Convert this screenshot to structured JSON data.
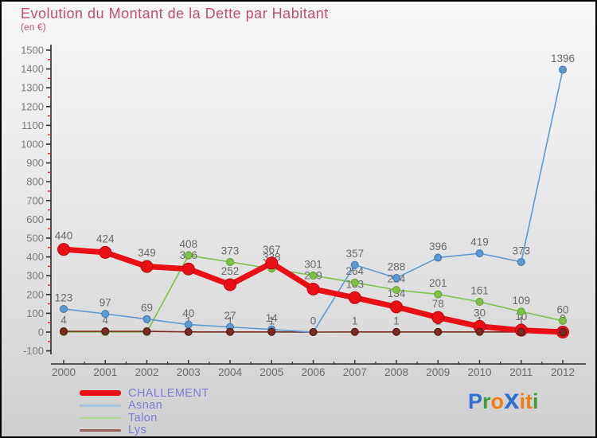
{
  "title": "Evolution du Montant de la Dette par Habitant",
  "subtitle": "(en €)",
  "chart_data": {
    "type": "line",
    "title": "Evolution du Montant de la Dette par Habitant",
    "unit_label": "(en €)",
    "x": [
      2000,
      2001,
      2002,
      2003,
      2004,
      2005,
      2006,
      2007,
      2008,
      2009,
      2010,
      2011,
      2012
    ],
    "ylim": [
      -100,
      1500
    ],
    "y_ticks": [
      -100,
      0,
      100,
      200,
      300,
      400,
      500,
      600,
      700,
      800,
      900,
      1000,
      1100,
      1200,
      1300,
      1400,
      1500
    ],
    "grid": false,
    "legend_position": "bottom-left",
    "series": [
      {
        "name": "CHALLEMENT",
        "color": "#e90f15",
        "marker_stroke": "#b30a10",
        "line_width": 7,
        "marker_radius": 7.5,
        "values": [
          440,
          424,
          349,
          336,
          252,
          367,
          229,
          183,
          134,
          78,
          30,
          10,
          0
        ],
        "hide_labels": []
      },
      {
        "name": "Asnan",
        "color": "#5e9ad2",
        "marker_stroke": "#3f76ab",
        "line_width": 1.6,
        "marker_radius": 4.5,
        "values": [
          123,
          97,
          69,
          40,
          27,
          14,
          0,
          357,
          288,
          396,
          419,
          373,
          1396
        ],
        "hide_labels": []
      },
      {
        "name": "Talon",
        "color": "#7fc24a",
        "marker_stroke": "#5d9c2f",
        "line_width": 1.6,
        "marker_radius": 4.5,
        "values": [
          0,
          0,
          0,
          408,
          373,
          338,
          301,
          264,
          224,
          201,
          161,
          109,
          60
        ],
        "hide_labels": [
          2000,
          2001,
          2002
        ]
      },
      {
        "name": "Lys",
        "color": "#7c2b21",
        "marker_stroke": "#4a140e",
        "line_width": 1.6,
        "marker_radius": 4.5,
        "values": [
          4,
          4,
          4,
          1,
          1,
          1,
          0,
          1,
          1,
          1,
          1,
          1,
          0
        ],
        "hide_labels": [
          2006,
          2012
        ]
      }
    ],
    "draw_line_order": [
      "Talon",
      "Lys",
      "Asnan",
      "CHALLEMENT"
    ],
    "draw_marker_order": [
      "Talon",
      "Asnan",
      "CHALLEMENT",
      "Lys"
    ]
  },
  "legend": {
    "text_color": "#7e7ad8",
    "items": [
      {
        "label": "CHALLEMENT",
        "swatch_color": "#e90f15",
        "swatch_height": 7
      },
      {
        "label": "Asnan",
        "swatch_color": "#a9c3da",
        "swatch_height": 2.5
      },
      {
        "label": "Talon",
        "swatch_color": "#b2db93",
        "swatch_height": 2.5
      },
      {
        "label": "Lys",
        "swatch_color": "#96615a",
        "swatch_height": 2.5
      }
    ]
  },
  "logo": {
    "letters": [
      {
        "ch": "P",
        "color": "#2e6fd2",
        "size": 27
      },
      {
        "ch": "r",
        "color": "#3ba03b",
        "size": 27
      },
      {
        "ch": "o",
        "color": "#f07d18",
        "size": 27
      },
      {
        "ch": "x",
        "color": "#2e6fd2",
        "size": 35
      },
      {
        "ch": "i",
        "color": "#f07d18",
        "size": 27
      },
      {
        "ch": "t",
        "color": "#f07d18",
        "size": 27
      },
      {
        "ch": "i",
        "color": "#3ba03b",
        "size": 27
      }
    ]
  },
  "colors": {
    "title": "#c14e6e",
    "axis": "#2b2b2b",
    "minor_tick": "#cc2a2a",
    "axis_label": "#7a7a7a",
    "data_label": "#686868",
    "background_top": "#f6f6f6",
    "background_bottom": "#cfcfcf",
    "border": "#000000"
  }
}
